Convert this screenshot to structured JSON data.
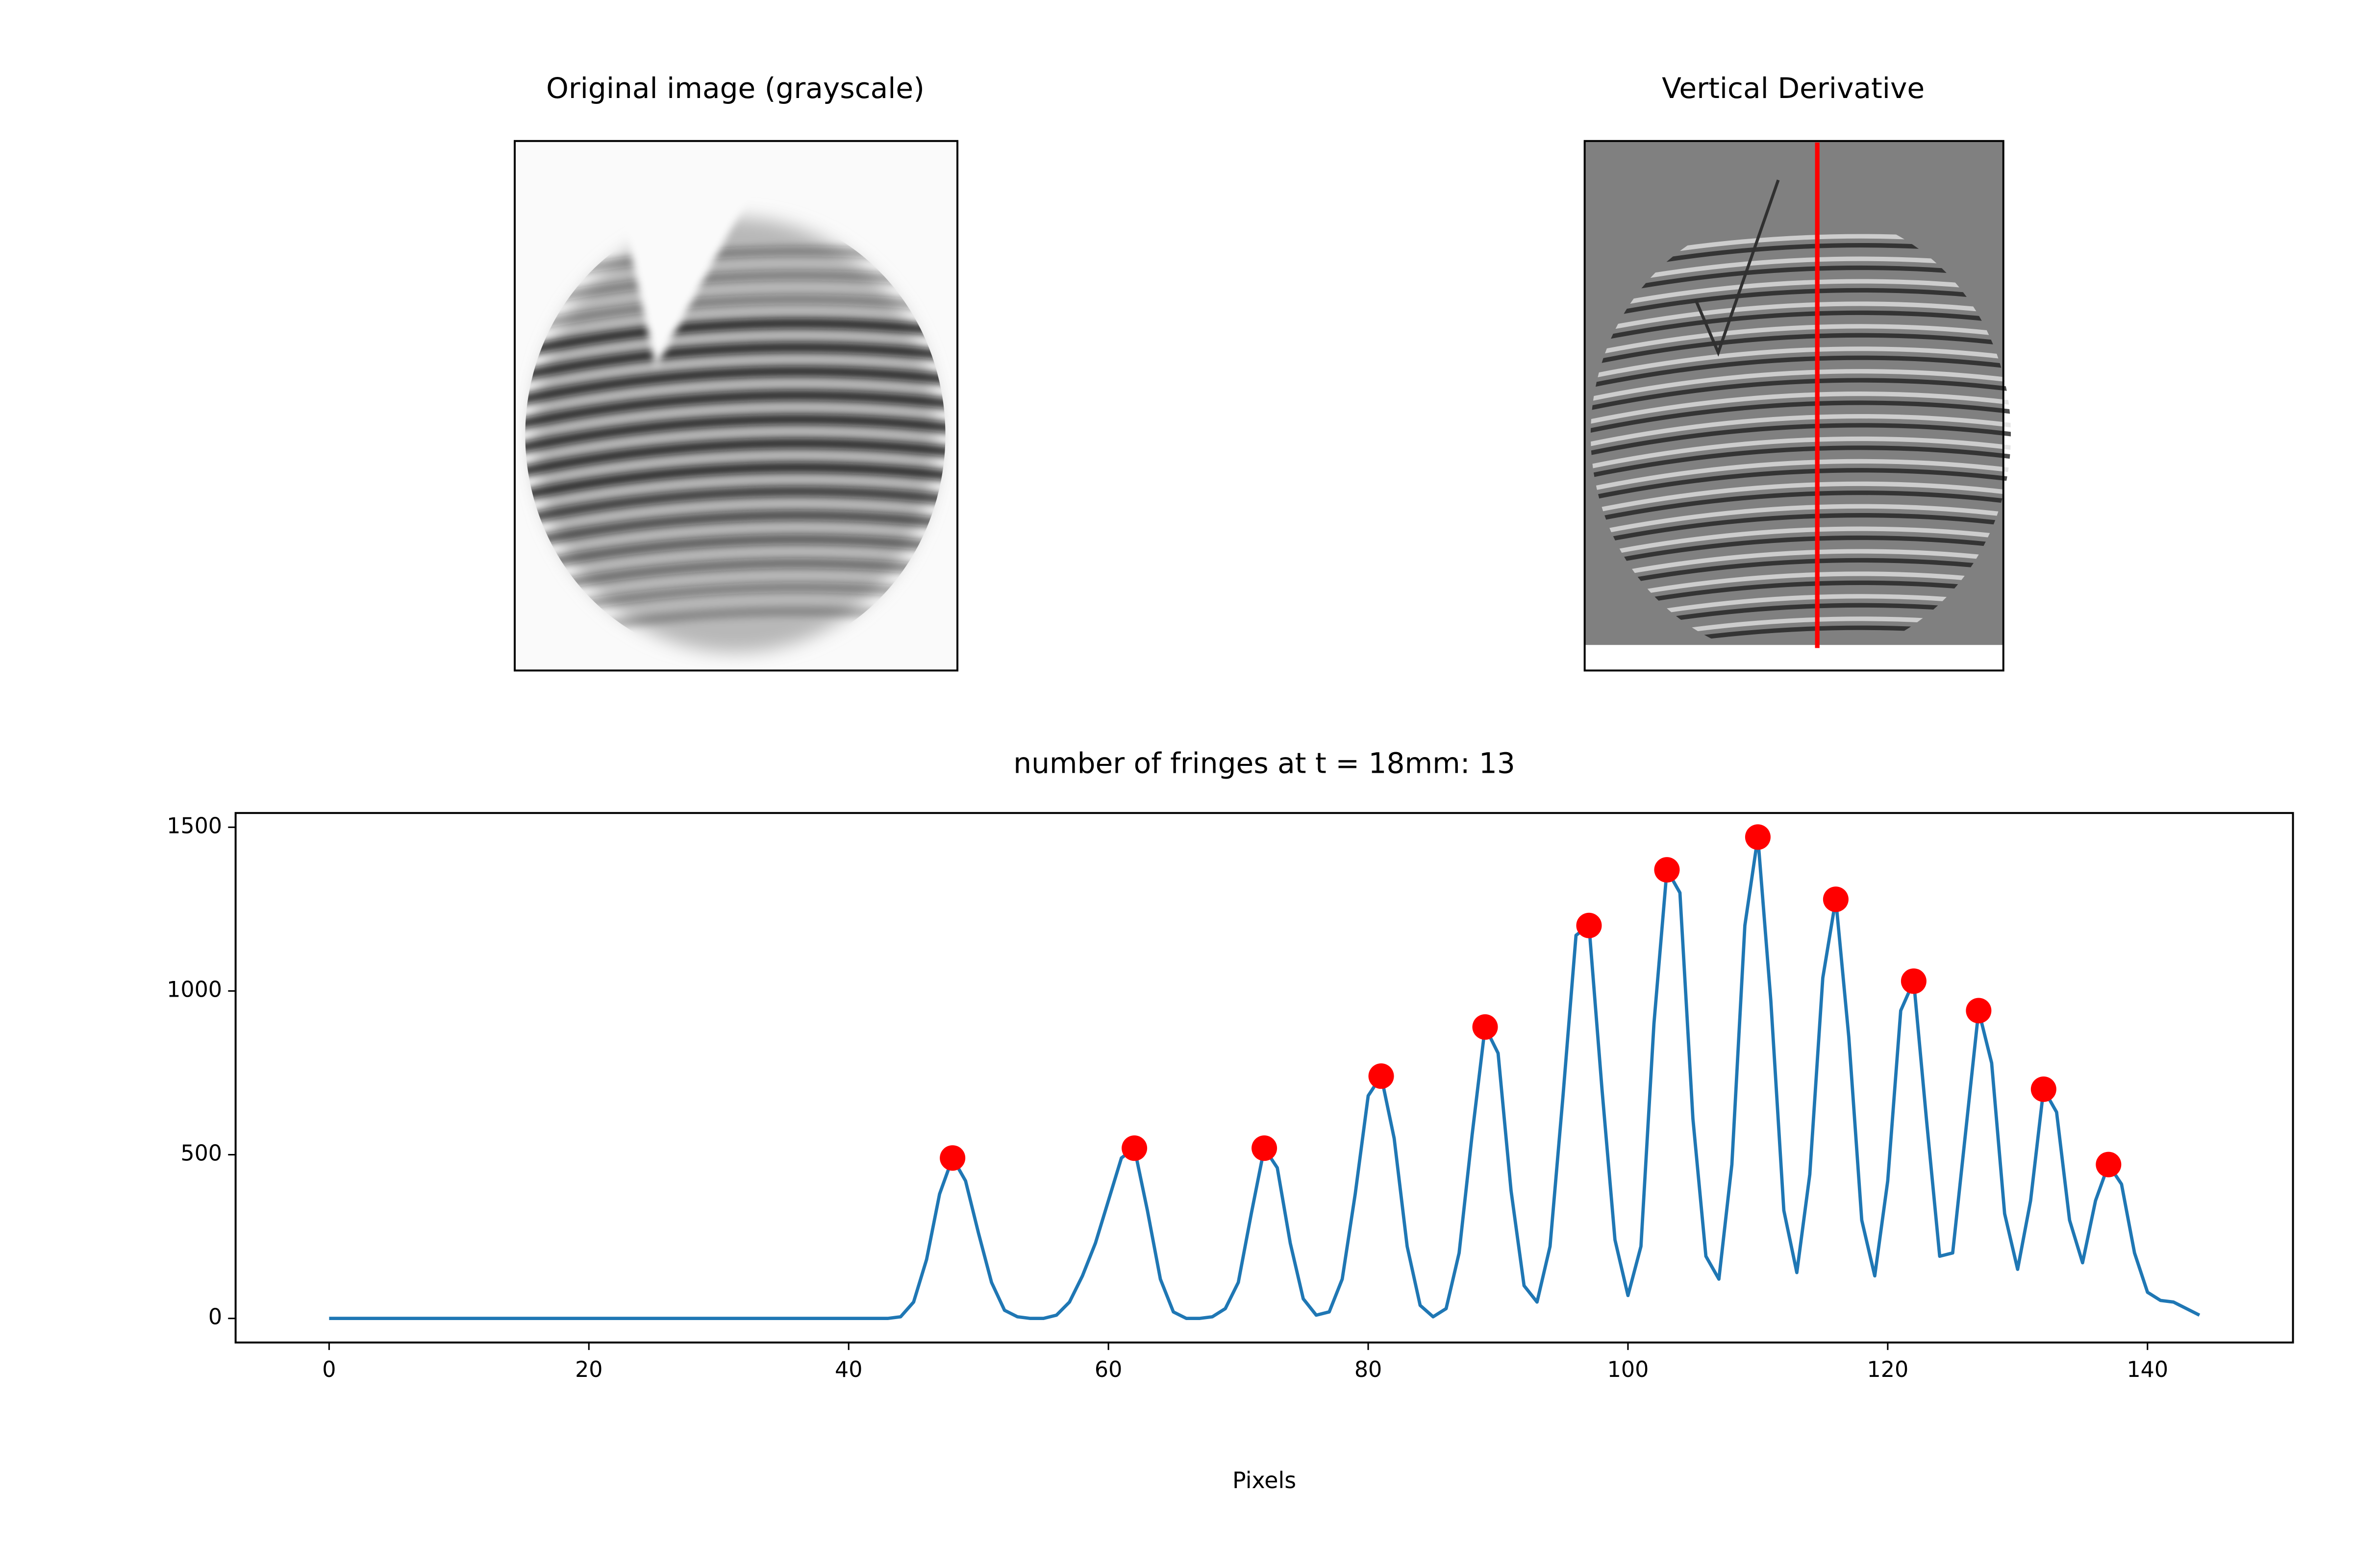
{
  "chart_data": [
    {
      "type": "image",
      "title": "Original image (grayscale)"
    },
    {
      "type": "image",
      "title": "Vertical Derivative"
    },
    {
      "type": "line",
      "title": "number of fringes at t = 18mm: 13",
      "xlabel": "Pixels",
      "color": "#1f77b4",
      "x": [
        0,
        1,
        2,
        3,
        4,
        5,
        6,
        7,
        8,
        9,
        10,
        11,
        12,
        13,
        14,
        15,
        16,
        17,
        18,
        19,
        20,
        21,
        22,
        23,
        24,
        25,
        26,
        27,
        28,
        29,
        30,
        31,
        32,
        33,
        34,
        35,
        36,
        37,
        38,
        39,
        40,
        41,
        42,
        43,
        44,
        45,
        46,
        47,
        48,
        49,
        50,
        51,
        52,
        53,
        54,
        55,
        56,
        57,
        58,
        59,
        60,
        61,
        62,
        63,
        64,
        65,
        66,
        67,
        68,
        69,
        70,
        71,
        72,
        73,
        74,
        75,
        76,
        77,
        78,
        79,
        80,
        81,
        82,
        83,
        84,
        85,
        86,
        87,
        88,
        89,
        90,
        91,
        92,
        93,
        94,
        95,
        96,
        97,
        98,
        99,
        100,
        101,
        102,
        103,
        104,
        105,
        106,
        107,
        108,
        109,
        110,
        111,
        112,
        113,
        114,
        115,
        116,
        117,
        118,
        119,
        120,
        121,
        122,
        123,
        124,
        125,
        126,
        127,
        128,
        129,
        130,
        131,
        132,
        133,
        134,
        135,
        136,
        137,
        138,
        139,
        140,
        141,
        142,
        143,
        144
      ],
      "values": [
        0,
        0,
        0,
        0,
        0,
        0,
        0,
        0,
        0,
        0,
        0,
        0,
        0,
        0,
        0,
        0,
        0,
        0,
        0,
        0,
        0,
        0,
        0,
        0,
        0,
        0,
        0,
        0,
        0,
        0,
        0,
        0,
        0,
        0,
        0,
        0,
        0,
        0,
        0,
        0,
        0,
        0,
        0,
        0,
        5,
        50,
        180,
        380,
        490,
        420,
        260,
        110,
        25,
        5,
        0,
        0,
        10,
        50,
        130,
        230,
        360,
        490,
        520,
        330,
        120,
        20,
        0,
        0,
        5,
        30,
        110,
        320,
        520,
        460,
        230,
        60,
        10,
        20,
        120,
        380,
        680,
        740,
        550,
        220,
        40,
        5,
        30,
        200,
        560,
        890,
        810,
        390,
        100,
        50,
        220,
        680,
        1170,
        1200,
        700,
        240,
        70,
        220,
        900,
        1370,
        1300,
        610,
        190,
        120,
        470,
        1200,
        1470,
        970,
        330,
        140,
        440,
        1040,
        1280,
        860,
        300,
        130,
        420,
        940,
        1030,
        600,
        190,
        200,
        570,
        940,
        780,
        320,
        150,
        360,
        700,
        630,
        300,
        170,
        360,
        470,
        410,
        200,
        80,
        55,
        50,
        30,
        10
      ],
      "markers": {
        "color": "#ff0000",
        "x": [
          48,
          62,
          72,
          81,
          89,
          97,
          103,
          110,
          116,
          122,
          127,
          132,
          137
        ],
        "values": [
          490,
          520,
          520,
          740,
          890,
          1200,
          1370,
          1470,
          1280,
          1030,
          940,
          700,
          470
        ]
      },
      "xlim": [
        -7.2,
        151.2
      ],
      "ylim": [
        -73.5,
        1543.5
      ],
      "xticks": [
        0,
        20,
        40,
        60,
        80,
        100,
        120,
        140
      ],
      "yticks": [
        0,
        500,
        1000,
        1500
      ]
    }
  ]
}
